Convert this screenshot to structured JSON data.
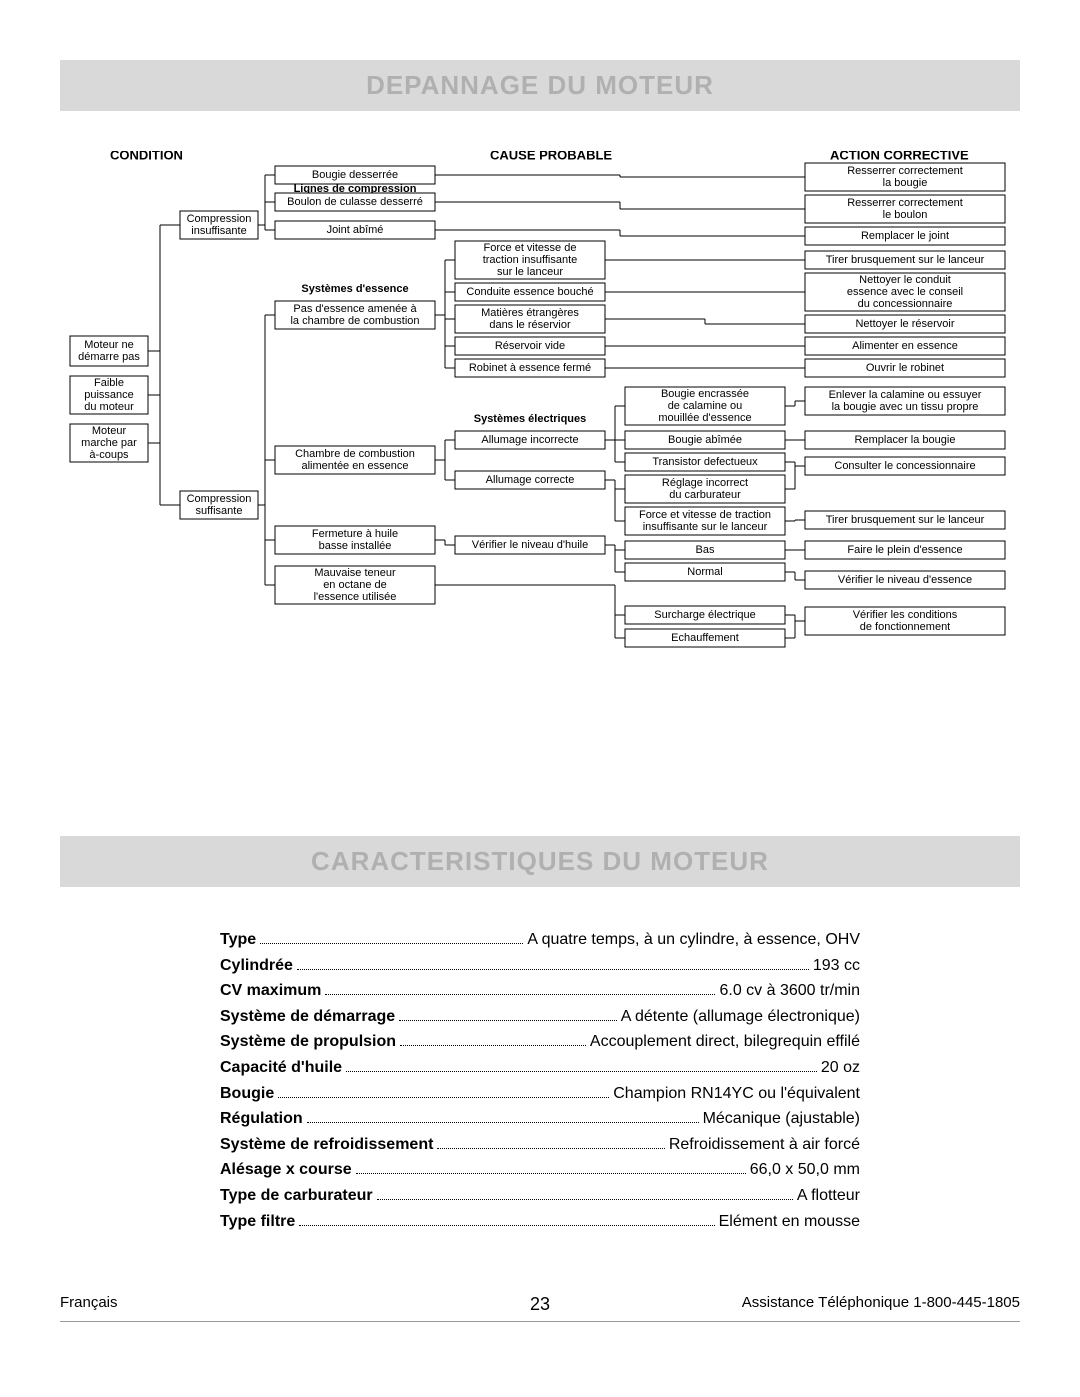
{
  "banner1": "DEPANNAGE DU MOTEUR",
  "banner2": "CARACTERISTIQUES DU MOTEUR",
  "headers": {
    "condition": "CONDITION",
    "cause": "CAUSE PROBABLE",
    "action": "ACTION CORRECTIVE"
  },
  "diagram": {
    "box_stroke": "#000000",
    "box_fill": "#ffffff",
    "line_stroke": "#000000",
    "font_normal": 11,
    "font_bold": 11,
    "boxes": {
      "lignes_compression": {
        "label": "Lignes de compression",
        "bold": true,
        "border": false
      },
      "systemes_essence": {
        "label": "Systèmes d'essence",
        "bold": true,
        "border": false
      },
      "systemes_electriques": {
        "label": "Systèmes électriques",
        "bold": true,
        "border": false
      },
      "moteur_demarre": {
        "lines": [
          "Moteur ne",
          "démarre pas"
        ]
      },
      "faible_puissance": {
        "lines": [
          "Faible",
          "puissance",
          "du moteur"
        ]
      },
      "moteur_acoups": {
        "lines": [
          "Moteur",
          "marche par",
          "à-coups"
        ]
      },
      "compression_insuf": {
        "lines": [
          "Compression",
          "insuffisante"
        ]
      },
      "compression_suf": {
        "lines": [
          "Compression",
          "suffisante"
        ]
      },
      "bougie_desserree": {
        "lines": [
          "Bougie desserrée"
        ]
      },
      "boulon_culasse": {
        "lines": [
          "Boulon de culasse desserré"
        ]
      },
      "joint_abime": {
        "lines": [
          "Joint abîmé"
        ]
      },
      "pas_essence": {
        "lines": [
          "Pas d'essence amenée à",
          "la chambre de combustion"
        ]
      },
      "chambre_combustion": {
        "lines": [
          "Chambre de combustion",
          "alimentée en essence"
        ]
      },
      "fermeture_huile": {
        "lines": [
          "Fermeture à huile",
          "basse installée"
        ]
      },
      "mauvaise_teneur": {
        "lines": [
          "Mauvaise teneur",
          "en octane de",
          "l'essence utilisée"
        ]
      },
      "force_traction": {
        "lines": [
          "Force et vitesse de",
          "traction insuffisante",
          "sur le lanceur"
        ]
      },
      "conduite_bouche": {
        "lines": [
          "Conduite essence bouché"
        ]
      },
      "matieres_etrangeres": {
        "lines": [
          "Matières étrangères",
          "dans le réservior"
        ]
      },
      "reservoir_vide": {
        "lines": [
          "Réservoir vide"
        ]
      },
      "robinet_ferme": {
        "lines": [
          "Robinet à essence fermé"
        ]
      },
      "allumage_incorrecte": {
        "lines": [
          "Allumage incorrecte"
        ]
      },
      "allumage_correcte": {
        "lines": [
          "Allumage correcte"
        ]
      },
      "verifier_huile": {
        "lines": [
          "Vérifier le niveau d'huile"
        ]
      },
      "bougie_encrassee": {
        "lines": [
          "Bougie encrassée",
          "de calamine ou",
          "mouillée d'essence"
        ]
      },
      "bougie_abimee": {
        "lines": [
          "Bougie abîmée"
        ]
      },
      "transistor_defect": {
        "lines": [
          "Transistor defectueux"
        ]
      },
      "reglage_carbu": {
        "lines": [
          "Réglage incorrect",
          "du carburateur"
        ]
      },
      "force_traction2": {
        "lines": [
          "Force et vitesse de traction",
          "insuffisante sur le lanceur"
        ]
      },
      "bas": {
        "lines": [
          "Bas"
        ]
      },
      "normal": {
        "lines": [
          "Normal"
        ]
      },
      "surcharge": {
        "lines": [
          "Surcharge électrique"
        ]
      },
      "echauffement": {
        "lines": [
          "Echauffement"
        ]
      },
      "resserrer_bougie": {
        "lines": [
          "Resserrer correctement",
          "la bougie"
        ]
      },
      "resserrer_boulon": {
        "lines": [
          "Resserrer correctement",
          "le boulon"
        ]
      },
      "remplacer_joint": {
        "lines": [
          "Remplacer le joint"
        ]
      },
      "tirer_lanceur": {
        "lines": [
          "Tirer brusquement sur le lanceur"
        ]
      },
      "nettoyer_conduit": {
        "lines": [
          "Nettoyer le conduit",
          "essence avec le conseil",
          "du concessionnaire"
        ]
      },
      "nettoyer_reservoir": {
        "lines": [
          "Nettoyer le réservoir"
        ]
      },
      "alimenter_essence": {
        "lines": [
          "Alimenter en essence"
        ]
      },
      "ouvrir_robinet": {
        "lines": [
          "Ouvrir le robinet"
        ]
      },
      "enlever_calamine": {
        "lines": [
          "Enlever la calamine ou essuyer",
          "la bougie avec un tissu propre"
        ]
      },
      "remplacer_bougie": {
        "lines": [
          "Remplacer la bougie"
        ]
      },
      "consulter_concess": {
        "lines": [
          "Consulter le concessionnaire"
        ]
      },
      "tirer_lanceur2": {
        "lines": [
          "Tirer brusquement sur le lanceur"
        ]
      },
      "faire_plein": {
        "lines": [
          "Faire le plein d'essence"
        ]
      },
      "verifier_essence": {
        "lines": [
          "Vérifier le niveau d'essence"
        ]
      },
      "verifier_cond": {
        "lines": [
          "Vérifier les conditions",
          "de fonctionnement"
        ]
      }
    }
  },
  "specs": [
    {
      "label": "Type",
      "value": "A quatre temps, à un cylindre, à essence, OHV"
    },
    {
      "label": "Cylindrée",
      "value": "193 cc"
    },
    {
      "label": "CV maximum",
      "value": "6.0 cv à 3600 tr/min"
    },
    {
      "label": "Système de démarrage",
      "value": "A détente (allumage électronique)"
    },
    {
      "label": "Système de propulsion",
      "value": "Accouplement direct, bilegrequin effilé"
    },
    {
      "label": "Capacité d'huile",
      "value": "20 oz"
    },
    {
      "label": "Bougie",
      "value": "Champion RN14YC ou l'équivalent"
    },
    {
      "label": "Régulation",
      "value": "Mécanique (ajustable)"
    },
    {
      "label": "Système de refroidissement",
      "value": "Refroidissement à air forcé"
    },
    {
      "label": "Alésage x course",
      "value": "66,0 x 50,0 mm"
    },
    {
      "label": "Type de carburateur",
      "value": "A flotteur"
    },
    {
      "label": "Type filtre",
      "value": "Elément en mousse"
    }
  ],
  "footer": {
    "left": "Français",
    "page": "23",
    "right": "Assistance Téléphonique 1-800-445-1805"
  }
}
